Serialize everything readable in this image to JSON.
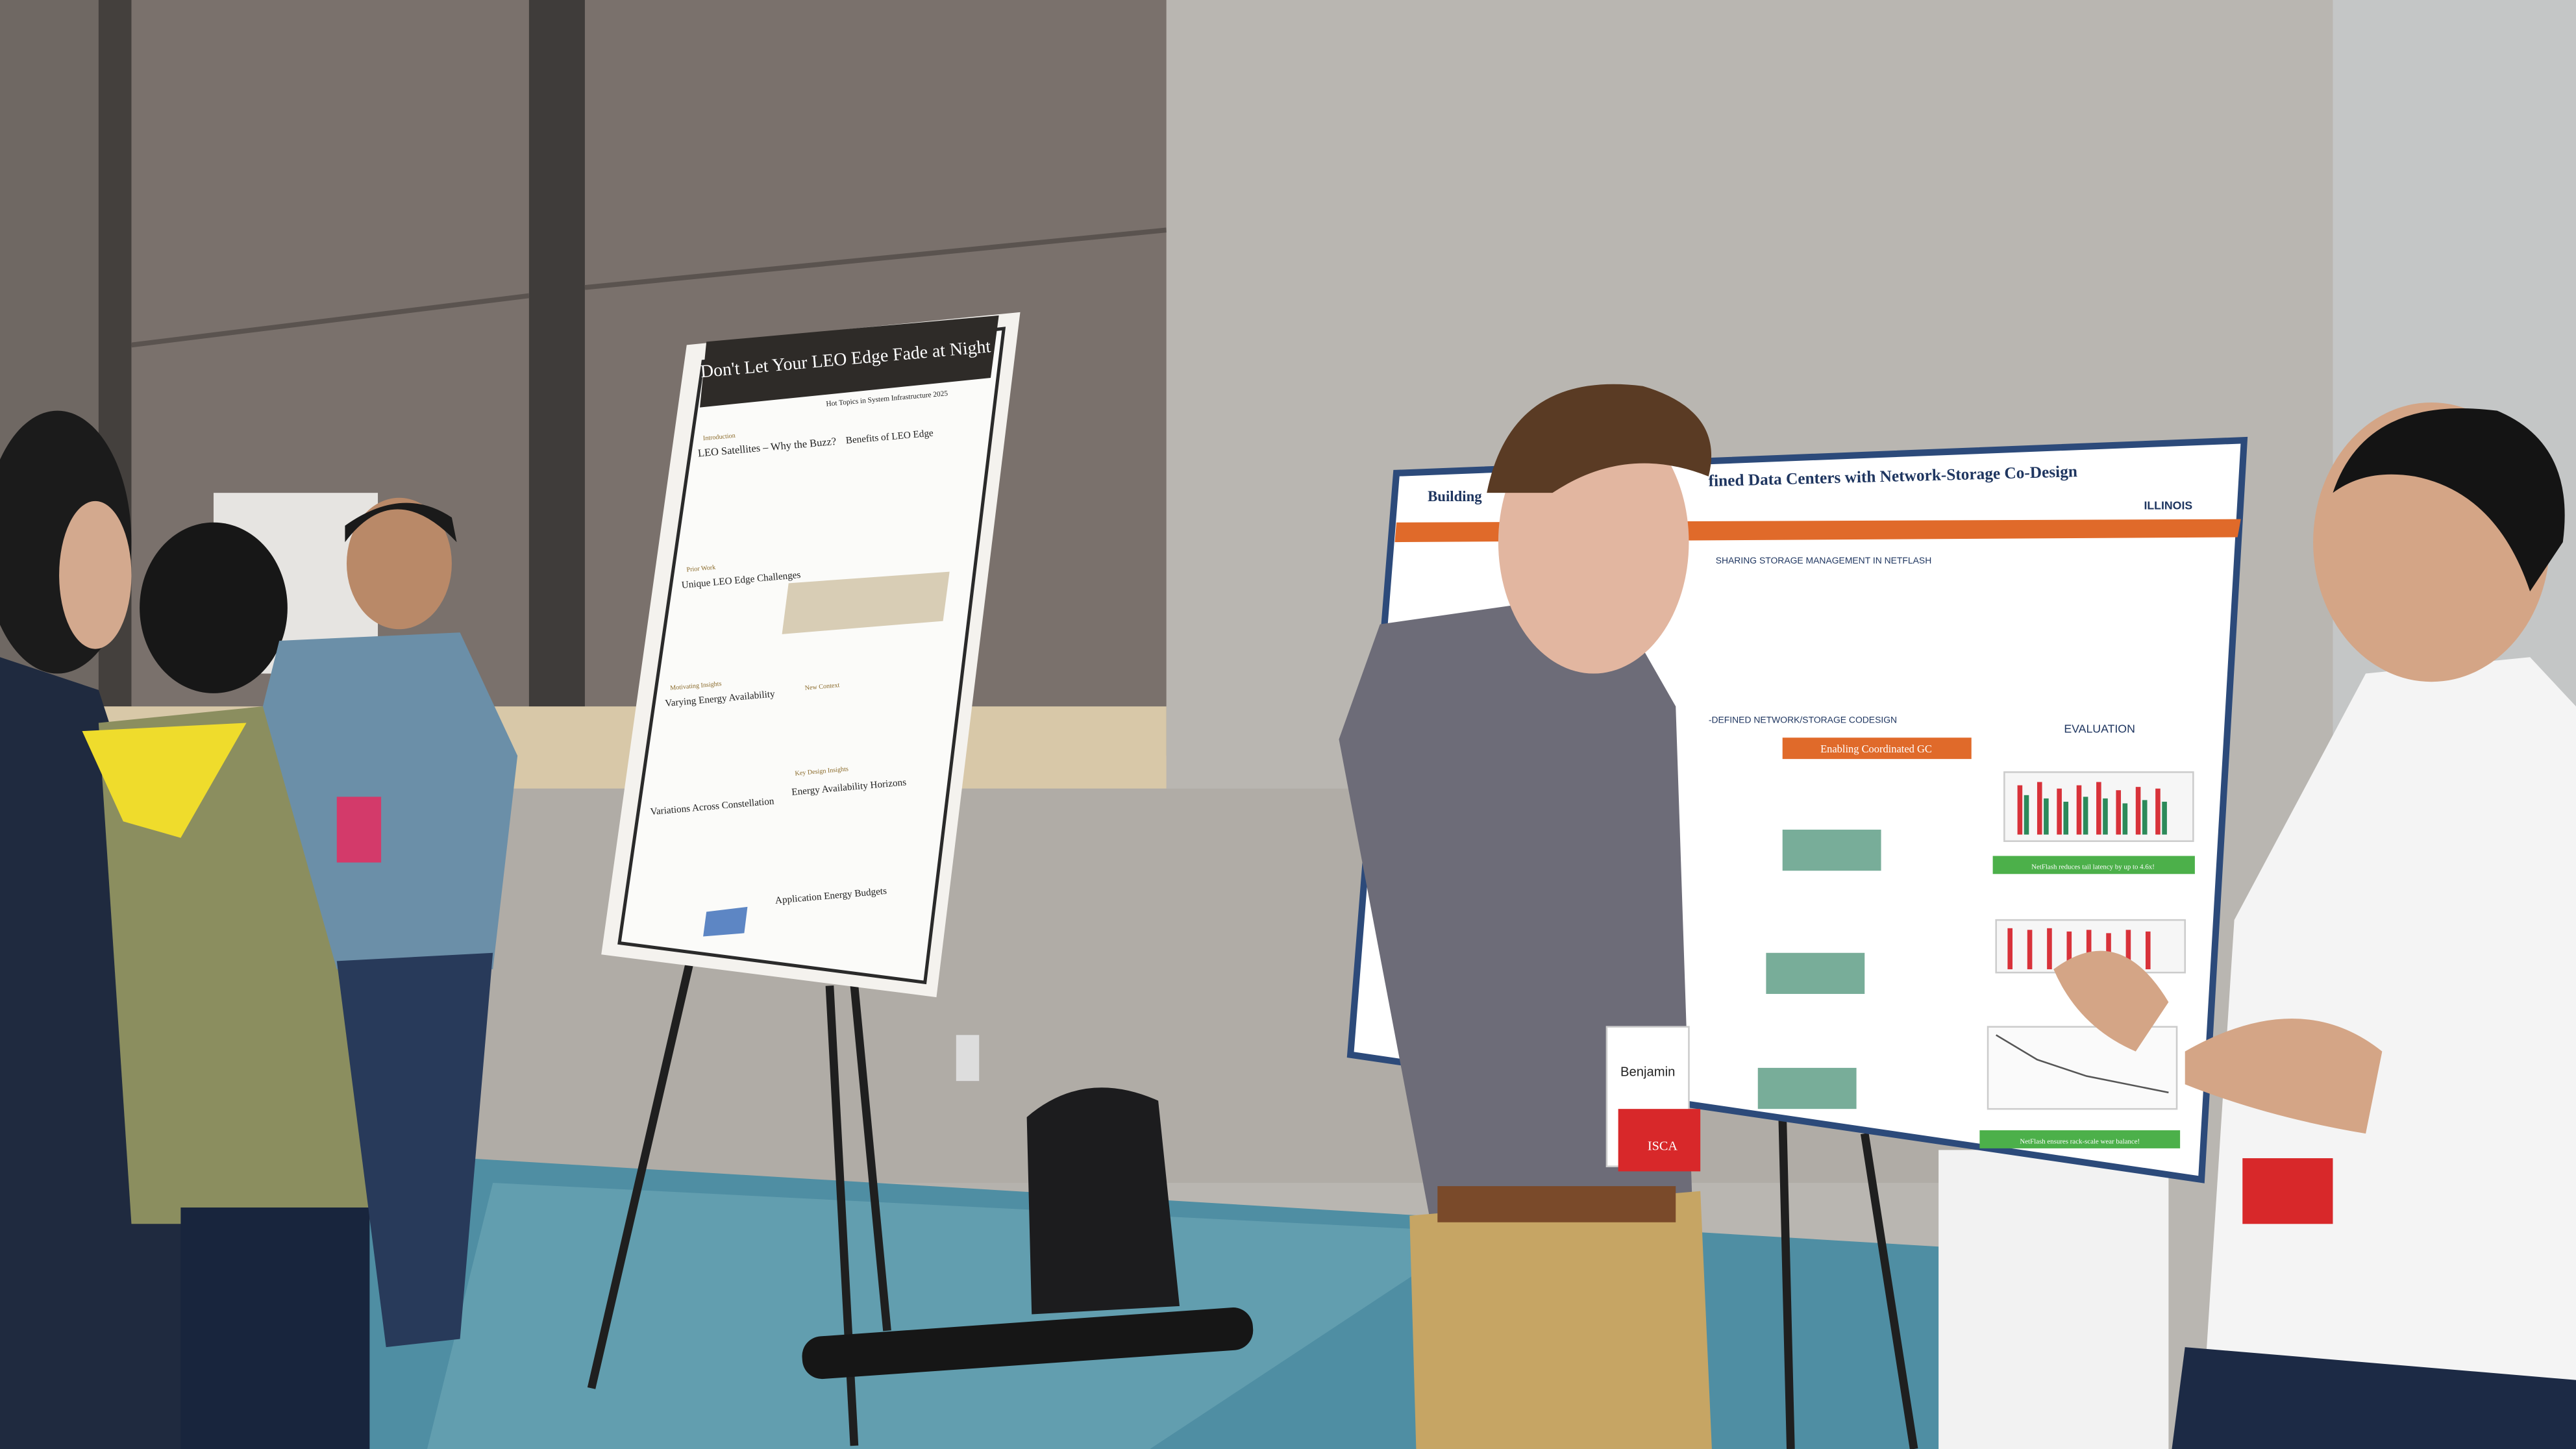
{
  "posters": [
    {
      "title": "Don't Let Your LEO Edge Fade at Night",
      "subtitle": "Hot Topics in System Infrastructure 2025",
      "sections": [
        "Introduction",
        "LEO Satellites – Why the Buzz?",
        "Benefits of LEO Edge",
        "Prior Work",
        "Unique LEO Edge Challenges",
        "Motivating Insights",
        "Varying Energy Availability",
        "Variations Across Constellation",
        "New Context",
        "Key Design Insights",
        "Energy Availability Horizons",
        "Application Energy Budgets"
      ]
    },
    {
      "title_left": "Building",
      "title_right": "fined Data Centers with Network-Storage Co-Design",
      "logo": "ILLINOIS",
      "sections": [
        "SHARING STORAGE MANAGEMENT IN NETFLASH",
        "-DEFINED NETWORK/STORAGE CODESIGN",
        "Enabling Coordinated GC",
        "EVALUATION"
      ],
      "results": [
        "NetFlash reduces tail latency by up to 4.6x!",
        "NetFlash ensures rack-scale wear balance!"
      ]
    }
  ],
  "badges": [
    "Benjamin",
    "ISCA"
  ]
}
